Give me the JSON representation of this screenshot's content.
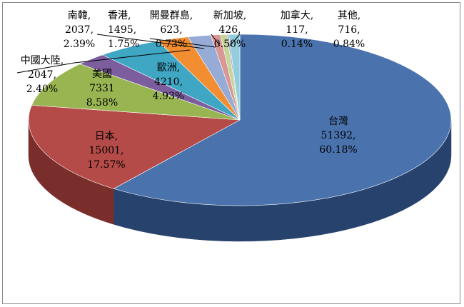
{
  "chart_data": {
    "type": "pie",
    "variant": "3d",
    "title": "",
    "legend": "none",
    "slices": [
      {
        "label": "台灣",
        "value": 51392,
        "percent": "60.18%",
        "value_text": "51392,",
        "color": "#4a73ae",
        "side": "#27436d"
      },
      {
        "label": "日本,",
        "value": 15001,
        "percent": "17.57%",
        "value_text": "15001,",
        "color": "#b54b48",
        "side": "#7a2e2c"
      },
      {
        "label": "美國",
        "value": 7331,
        "percent": "8.58%",
        "value_text": "7331",
        "color": "#99b552",
        "side": "#657a32"
      },
      {
        "label": "中國大陸,",
        "value": 2047,
        "percent": "2.40%",
        "value_text": "2047,",
        "color": "#7c5e9f",
        "side": "#4f3b68"
      },
      {
        "label": "歐洲,",
        "value": 4210,
        "percent": "4.93%",
        "value_text": "4210,",
        "color": "#3fa6c3",
        "side": "#276a7d"
      },
      {
        "label": "南韓,",
        "value": 2037,
        "percent": "2.39%",
        "value_text": "2037,",
        "color": "#f28d32",
        "side": "#a85c1a"
      },
      {
        "label": "香港,",
        "value": 1495,
        "percent": "1.75%",
        "value_text": "1495,",
        "color": "#96acd6",
        "side": "#5e7297"
      },
      {
        "label": "開曼群島,",
        "value": 623,
        "percent": "0.73%",
        "value_text": "623,",
        "color": "#d99795",
        "side": "#9a5f5d"
      },
      {
        "label": "新加坡,",
        "value": 426,
        "percent": "0.50%",
        "value_text": "426,",
        "color": "#c3d79b",
        "side": "#8a9a63"
      },
      {
        "label": "加拿大,",
        "value": 117,
        "percent": "0.14%",
        "value_text": "117,",
        "color": "#b2a2c7",
        "side": "#7a6b8e"
      },
      {
        "label": "其他,",
        "value": 716,
        "percent": "0.84%",
        "value_text": "716,",
        "color": "#93cddd",
        "side": "#5d93a2"
      }
    ]
  }
}
